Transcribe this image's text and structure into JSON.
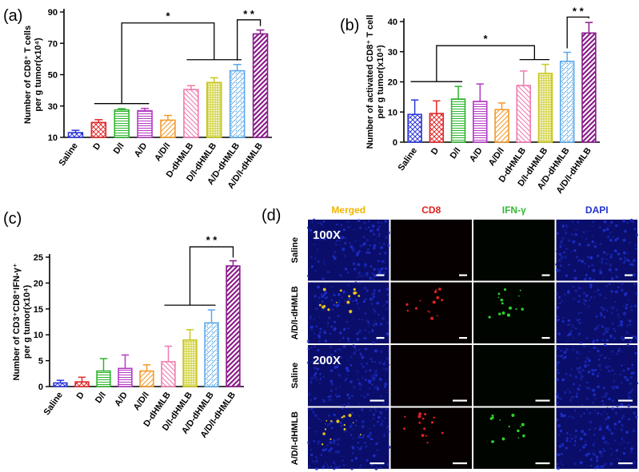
{
  "colors": {
    "Saline": "#2d36d8",
    "D": "#e02a2a",
    "D/I": "#2fb52f",
    "A/D": "#b43ac4",
    "A/D/I": "#f39a2c",
    "D-dHMLB": "#f07ab0",
    "D/I-dHMLB": "#c8c81e",
    "A/D-dHMLB": "#5aa8ea",
    "A/D/I-dHMLB": "#8a1c8a"
  },
  "chart_data": [
    {
      "panel": "(a)",
      "type": "bar",
      "ylabel_lines": [
        "Number of CD8⁺ T cells",
        "per g tumor(x10⁴)"
      ],
      "categories": [
        "Saline",
        "D",
        "D/I",
        "A/D",
        "A/D/I",
        "D-dHMLB",
        "D/I-dHMLB",
        "A/D-dHMLB",
        "A/D/I-dHMLB"
      ],
      "values": [
        13,
        19.5,
        27.5,
        27,
        21,
        40.5,
        45,
        52.5,
        76
      ],
      "errors": [
        1.5,
        1.8,
        0.8,
        1.5,
        3,
        2.5,
        3,
        4,
        2.5
      ],
      "ylim": [
        10,
        90
      ],
      "yticks": [
        10,
        30,
        50,
        70,
        90
      ],
      "annotations": [
        {
          "label": "*",
          "type": "group",
          "left": [
            1,
            3
          ],
          "right": [
            5,
            7
          ],
          "y": 83
        },
        {
          "label": "* *",
          "type": "simple",
          "x1": 7,
          "x2": 8,
          "y": 85
        }
      ]
    },
    {
      "panel": "(b)",
      "type": "bar",
      "ylabel_lines": [
        "Number of activated CD8⁺ T cell",
        "per g tumor(x10⁴)"
      ],
      "categories": [
        "Saline",
        "D",
        "D/I",
        "A/D",
        "A/D/I",
        "D-dHMLB",
        "D/I-dHMLB",
        "A/D-dHMLB",
        "A/D/I-dHMLB"
      ],
      "values": [
        9.2,
        9.5,
        14.3,
        13.5,
        10.8,
        18.8,
        22.8,
        26.8,
        36.2
      ],
      "errors": [
        4.8,
        4.2,
        4.2,
        5.8,
        2.2,
        4.8,
        3.0,
        3.0,
        3.5
      ],
      "ylim": [
        0,
        40
      ],
      "yticks": [
        0,
        10,
        20,
        30,
        40
      ],
      "annotations": [
        {
          "label": "*",
          "type": "group",
          "left": [
            0,
            2
          ],
          "right": [
            5,
            6
          ],
          "y": 32
        },
        {
          "label": "* *",
          "type": "simple",
          "x1": 7,
          "x2": 8,
          "y": 41.5
        }
      ]
    },
    {
      "panel": "(c)",
      "type": "bar",
      "ylabel_lines": [
        "Number of  CD3⁺CD8⁺IFN-γ⁺",
        "per g tumor(x10⁴)"
      ],
      "categories": [
        "Saline",
        "D",
        "D/I",
        "A/D",
        "A/D/I",
        "D-dHMLB",
        "D/I-dHMLB",
        "A/D-dHMLB",
        "A/D/I-dHMLB"
      ],
      "values": [
        0.7,
        0.9,
        3.0,
        3.5,
        3.0,
        4.8,
        9.0,
        12.3,
        23.3
      ],
      "errors": [
        0.5,
        0.9,
        2.4,
        2.6,
        1.2,
        3.0,
        2.0,
        2.5,
        1.0
      ],
      "ylim": [
        0,
        25
      ],
      "yticks": [
        0,
        5,
        10,
        15,
        20,
        25
      ],
      "annotations": [
        {
          "label": "* *",
          "type": "group1",
          "left": [
            5,
            7
          ],
          "right": [
            8,
            8
          ],
          "y": 27
        }
      ]
    }
  ],
  "panel_d": {
    "label": "(d)",
    "columns": [
      "Merged",
      "CD8",
      "IFN-γ",
      "DAPI"
    ],
    "column_colors": [
      "#f0b400",
      "#e02020",
      "#33b833",
      "#2233cc"
    ],
    "rows": [
      "Saline",
      "A/D/I-dHMLB",
      "Saline",
      "A/D/I-dHMLB"
    ],
    "magnifications": [
      "100X",
      "200X"
    ]
  }
}
